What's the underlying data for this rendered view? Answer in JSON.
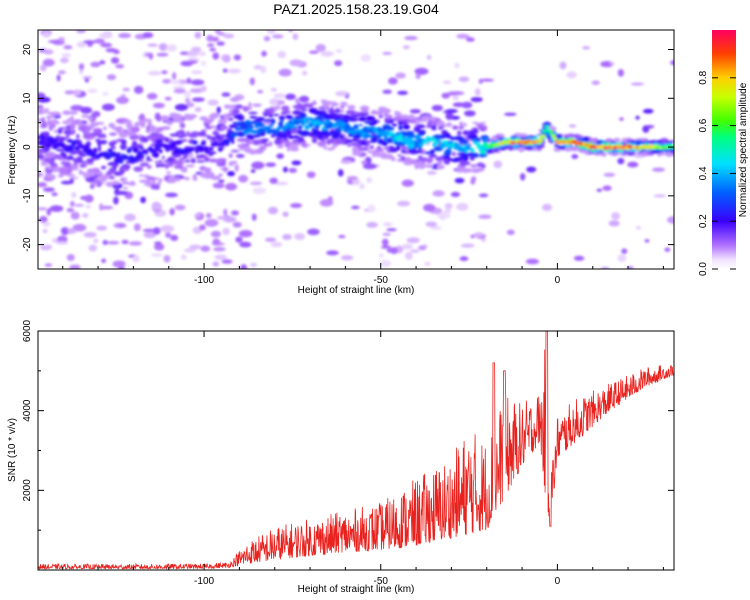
{
  "figure": {
    "title": "PAZ1.2025.158.23.19.G04"
  },
  "chart_data": [
    {
      "type": "heatmap",
      "title": "PAZ1.2025.158.23.19.G04",
      "xlabel": "Height of straight line (km)",
      "ylabel": "Frequency (Hz)",
      "xlim": [
        -147,
        33
      ],
      "ylim": [
        -25,
        24
      ],
      "xticks": [
        -100,
        -50,
        0
      ],
      "yticks": [
        -20,
        -10,
        0,
        10,
        20
      ],
      "grid": false,
      "colorbar": {
        "label": "Normalized spectral amplitude",
        "range": [
          0,
          1
        ],
        "ticks": [
          "0.0",
          "0.2",
          "0.4",
          "0.6",
          "0.8"
        ],
        "colormap": "rainbow (white-violet-blue-cyan-green-yellow-red)"
      },
      "ridge": {
        "x": [
          -145,
          -135,
          -125,
          -115,
          -105,
          -95,
          -90,
          -80,
          -70,
          -60,
          -50,
          -45,
          -40,
          -35,
          -30,
          -25,
          -20,
          -15,
          -10,
          -5,
          -3,
          0,
          5,
          10,
          20,
          33
        ],
        "freq": [
          1,
          0,
          -2,
          -1,
          0,
          0,
          4,
          4,
          5,
          4,
          3,
          2,
          1,
          1,
          0,
          0,
          0,
          1,
          1,
          1,
          4,
          1,
          1,
          0,
          0,
          0
        ],
        "amplitude": [
          0.22,
          0.22,
          0.25,
          0.22,
          0.22,
          0.2,
          0.35,
          0.35,
          0.4,
          0.38,
          0.4,
          0.45,
          0.42,
          0.45,
          0.45,
          0.42,
          0.55,
          0.85,
          0.9,
          0.9,
          0.5,
          0.9,
          0.95,
          0.95,
          0.95,
          0.6
        ]
      }
    },
    {
      "type": "line",
      "xlabel": "Height of straight line (km)",
      "ylabel": "SNR (10 * v/v)",
      "xlim": [
        -147,
        33
      ],
      "ylim": [
        0,
        6000
      ],
      "xticks": [
        -100,
        -50,
        0
      ],
      "yticks": [
        2000,
        4000,
        6000
      ],
      "grid": false,
      "series": [
        {
          "color": "#e8231f",
          "envelope_x": [
            -147,
            -120,
            -100,
            -93,
            -88,
            -80,
            -70,
            -60,
            -50,
            -40,
            -30,
            -25,
            -20,
            -15,
            -10,
            -5,
            -3,
            -2,
            -1,
            0,
            5,
            10,
            15,
            20,
            25,
            33
          ],
          "envelope_low": [
            30,
            30,
            40,
            60,
            150,
            250,
            350,
            450,
            500,
            600,
            800,
            900,
            1000,
            1800,
            2600,
            3200,
            1500,
            1200,
            1900,
            2800,
            3200,
            3600,
            4000,
            4300,
            4600,
            4900
          ],
          "envelope_high": [
            150,
            150,
            160,
            200,
            700,
            1100,
            1300,
            1500,
            1700,
            2300,
            2900,
            3600,
            3300,
            4400,
            4200,
            4500,
            6000,
            3000,
            3000,
            3900,
            4300,
            4500,
            4700,
            4900,
            5100,
            5200
          ],
          "spikes": [
            [
              -18,
              5200
            ],
            [
              -15,
              5000
            ],
            [
              -3,
              6000
            ],
            [
              -2,
              1100
            ]
          ]
        }
      ]
    }
  ]
}
